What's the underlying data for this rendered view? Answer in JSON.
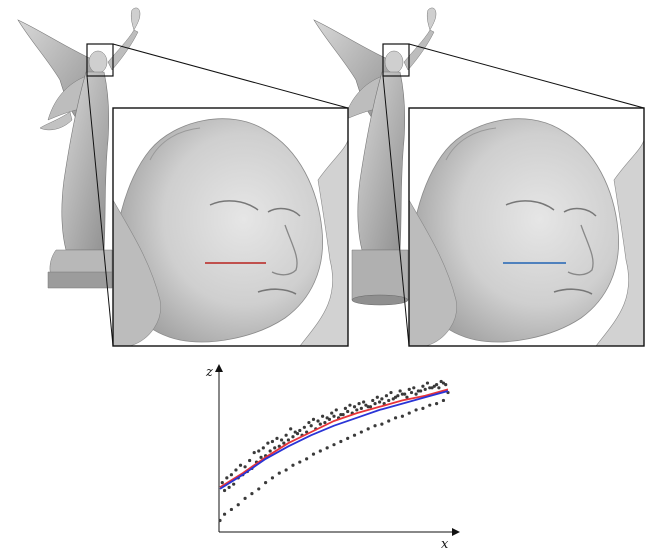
{
  "figure": {
    "panels": [
      {
        "name": "left",
        "profile_line_color": "#c0504d"
      },
      {
        "name": "right",
        "profile_line_color": "#4f81bd"
      }
    ],
    "plot": {
      "xlabel": "x",
      "ylabel": "z"
    }
  },
  "chart_data": {
    "type": "scatter",
    "xlabel": "x",
    "ylabel": "z",
    "xlim": [
      0,
      1
    ],
    "ylim": [
      0,
      1
    ],
    "series": [
      {
        "kind": "line",
        "color": "#e8333a",
        "x": [
          0,
          0.1,
          0.2,
          0.3,
          0.4,
          0.5,
          0.6,
          0.7,
          0.8,
          0.9,
          1.0
        ],
        "y": [
          0.27,
          0.36,
          0.46,
          0.55,
          0.62,
          0.69,
          0.74,
          0.78,
          0.82,
          0.85,
          0.89
        ]
      },
      {
        "kind": "line",
        "color": "#2a34d6",
        "x": [
          0,
          0.1,
          0.2,
          0.3,
          0.4,
          0.5,
          0.6,
          0.7,
          0.8,
          0.9,
          1.0
        ],
        "y": [
          0.26,
          0.35,
          0.45,
          0.53,
          0.6,
          0.66,
          0.71,
          0.76,
          0.8,
          0.84,
          0.88
        ]
      },
      {
        "kind": "points",
        "color": "#3a3a3a",
        "x": [
          0.01,
          0.03,
          0.05,
          0.07,
          0.09,
          0.11,
          0.13,
          0.15,
          0.17,
          0.19,
          0.21,
          0.23,
          0.25,
          0.27,
          0.29,
          0.31,
          0.33,
          0.35,
          0.37,
          0.39,
          0.41,
          0.43,
          0.45,
          0.47,
          0.49,
          0.51,
          0.53,
          0.55,
          0.57,
          0.59,
          0.61,
          0.63,
          0.65,
          0.67,
          0.69,
          0.71,
          0.73,
          0.75,
          0.77,
          0.79,
          0.81,
          0.83,
          0.85,
          0.87,
          0.89,
          0.91,
          0.93,
          0.95,
          0.97,
          0.99,
          0.02,
          0.04,
          0.06,
          0.08,
          0.1,
          0.12,
          0.14,
          0.16,
          0.18,
          0.2,
          0.22,
          0.24,
          0.26,
          0.28,
          0.3,
          0.32,
          0.34,
          0.36,
          0.38,
          0.4,
          0.42,
          0.44,
          0.46,
          0.48,
          0.5,
          0.52,
          0.54,
          0.56,
          0.58,
          0.6,
          0.62,
          0.64,
          0.66,
          0.68,
          0.7,
          0.72,
          0.74,
          0.76,
          0.78,
          0.8,
          0.82,
          0.84,
          0.86,
          0.88,
          0.9,
          0.92,
          0.94,
          0.96,
          0.98,
          1.0,
          0.0,
          0.02,
          0.05,
          0.08,
          0.11,
          0.14,
          0.17,
          0.2,
          0.23,
          0.26,
          0.29,
          0.32,
          0.35,
          0.38,
          0.41,
          0.44,
          0.47,
          0.5,
          0.53,
          0.56,
          0.59,
          0.62,
          0.65,
          0.68,
          0.71,
          0.74,
          0.77,
          0.8,
          0.83,
          0.86,
          0.89,
          0.92,
          0.95,
          0.98
        ],
        "y": [
          0.3,
          0.33,
          0.35,
          0.38,
          0.41,
          0.4,
          0.44,
          0.49,
          0.5,
          0.52,
          0.55,
          0.56,
          0.58,
          0.57,
          0.6,
          0.64,
          0.62,
          0.63,
          0.65,
          0.68,
          0.7,
          0.69,
          0.72,
          0.71,
          0.74,
          0.76,
          0.73,
          0.77,
          0.79,
          0.78,
          0.8,
          0.81,
          0.78,
          0.82,
          0.84,
          0.83,
          0.85,
          0.87,
          0.84,
          0.88,
          0.86,
          0.89,
          0.9,
          0.88,
          0.91,
          0.93,
          0.9,
          0.92,
          0.94,
          0.92,
          0.25,
          0.27,
          0.29,
          0.33,
          0.35,
          0.37,
          0.39,
          0.43,
          0.46,
          0.47,
          0.5,
          0.52,
          0.53,
          0.55,
          0.57,
          0.59,
          0.61,
          0.6,
          0.62,
          0.66,
          0.64,
          0.67,
          0.68,
          0.7,
          0.72,
          0.71,
          0.73,
          0.75,
          0.74,
          0.76,
          0.77,
          0.79,
          0.78,
          0.8,
          0.81,
          0.8,
          0.82,
          0.83,
          0.85,
          0.86,
          0.84,
          0.87,
          0.86,
          0.88,
          0.89,
          0.9,
          0.91,
          0.9,
          0.93,
          0.87,
          0.06,
          0.1,
          0.13,
          0.16,
          0.2,
          0.23,
          0.26,
          0.3,
          0.33,
          0.36,
          0.38,
          0.41,
          0.43,
          0.45,
          0.48,
          0.5,
          0.52,
          0.54,
          0.56,
          0.58,
          0.6,
          0.62,
          0.64,
          0.66,
          0.67,
          0.69,
          0.71,
          0.72,
          0.74,
          0.76,
          0.77,
          0.79,
          0.8,
          0.82
        ]
      }
    ]
  }
}
